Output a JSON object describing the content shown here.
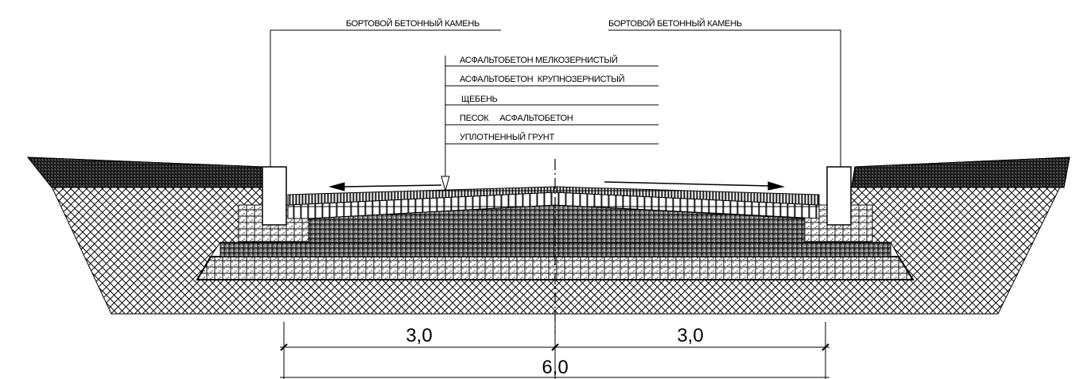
{
  "callouts": {
    "curb_left": "БОРТОВОЙ БЕТОННЫЙ КАМЕНЬ",
    "curb_right": "БОРТОВОЙ БЕТОННЫЙ КАМЕНЬ"
  },
  "layers": [
    "АСФАЛЬТОБЕТОН МЕЛКОЗЕРНИСТЫЙ",
    "АСФАЛЬТОБЕТОН  КРУПНОЗЕРНИСТЫЙ",
    "ЩЕБЕНЬ",
    "ПЕСОК     АСФАЛЬТОБЕТОН",
    "УПЛОТНЕННЫЙ ГРУНТ"
  ],
  "dimensions": {
    "left": "3,0",
    "right": "3,0",
    "total": "6,0"
  }
}
